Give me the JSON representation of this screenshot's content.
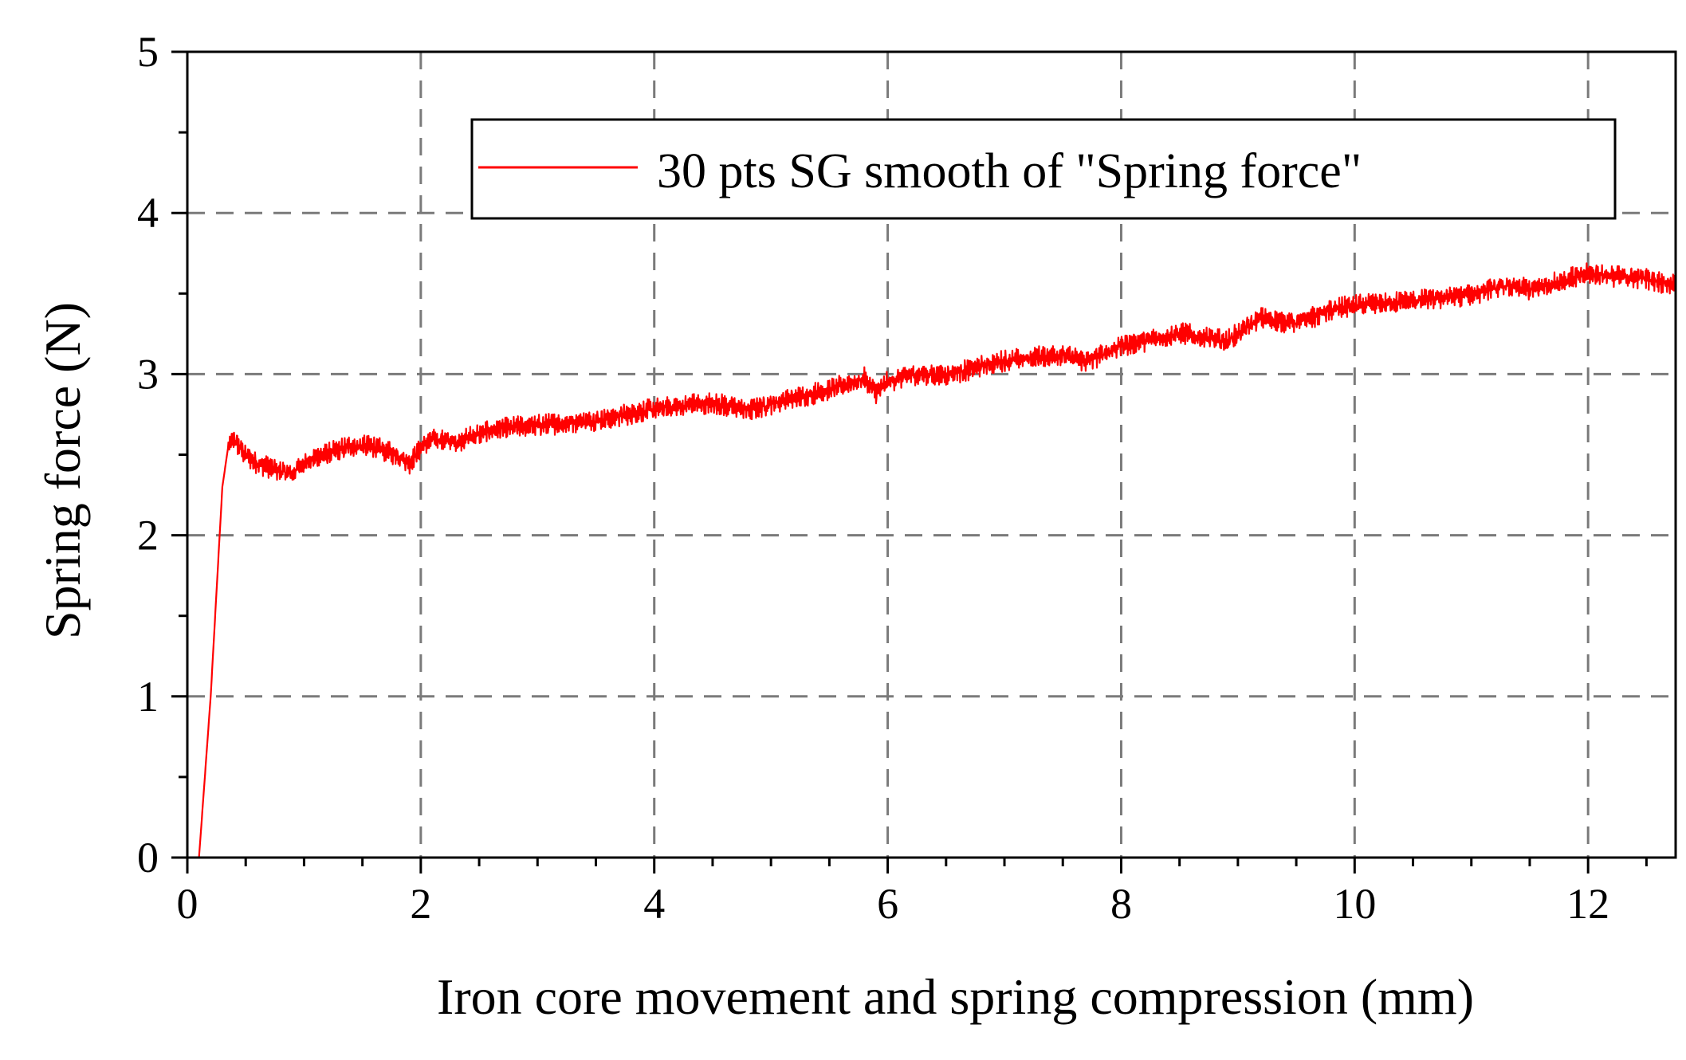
{
  "chart_data": {
    "type": "line",
    "title": "",
    "xlabel": "Iron core movement and spring compression (mm)",
    "ylabel": "Spring force (N)",
    "xlim": [
      0,
      12.75
    ],
    "ylim": [
      0,
      5
    ],
    "xticks": [
      0,
      2,
      4,
      6,
      8,
      10,
      12
    ],
    "yticks": [
      0,
      1,
      2,
      3,
      4,
      5
    ],
    "x_tick_labels": [
      "0",
      "2",
      "4",
      "6",
      "8",
      "10",
      "12"
    ],
    "y_tick_labels": [
      "0",
      "1",
      "2",
      "3",
      "4",
      "5"
    ],
    "x_minor_step": 0.5,
    "y_minor_step": 0.5,
    "grid": true,
    "legend_position": "top-right",
    "series": [
      {
        "name": "30 pts SG smooth of \"Spring force\"",
        "color": "#ff0000",
        "noise_amplitude": 0.07,
        "x": [
          0.1,
          0.2,
          0.3,
          0.35,
          0.4,
          0.5,
          0.6,
          0.8,
          0.9,
          1.0,
          1.2,
          1.4,
          1.6,
          1.8,
          1.9,
          2.0,
          2.1,
          2.3,
          2.6,
          3.0,
          3.5,
          4.0,
          4.5,
          4.8,
          5.0,
          5.5,
          5.8,
          5.9,
          6.0,
          6.2,
          6.5,
          7.0,
          7.5,
          7.7,
          8.0,
          8.5,
          8.9,
          9.0,
          9.2,
          9.5,
          9.8,
          10.0,
          10.5,
          10.8,
          11.0,
          11.3,
          11.5,
          12.0,
          12.5,
          12.75
        ],
        "y": [
          0.0,
          1.0,
          2.3,
          2.55,
          2.6,
          2.5,
          2.45,
          2.4,
          2.38,
          2.45,
          2.5,
          2.55,
          2.55,
          2.5,
          2.45,
          2.55,
          2.6,
          2.58,
          2.65,
          2.68,
          2.72,
          2.78,
          2.82,
          2.78,
          2.82,
          2.9,
          2.97,
          2.88,
          2.95,
          3.0,
          3.0,
          3.08,
          3.12,
          3.08,
          3.18,
          3.25,
          3.2,
          3.25,
          3.35,
          3.32,
          3.4,
          3.42,
          3.45,
          3.48,
          3.5,
          3.55,
          3.52,
          3.62,
          3.6,
          3.55
        ]
      }
    ]
  }
}
